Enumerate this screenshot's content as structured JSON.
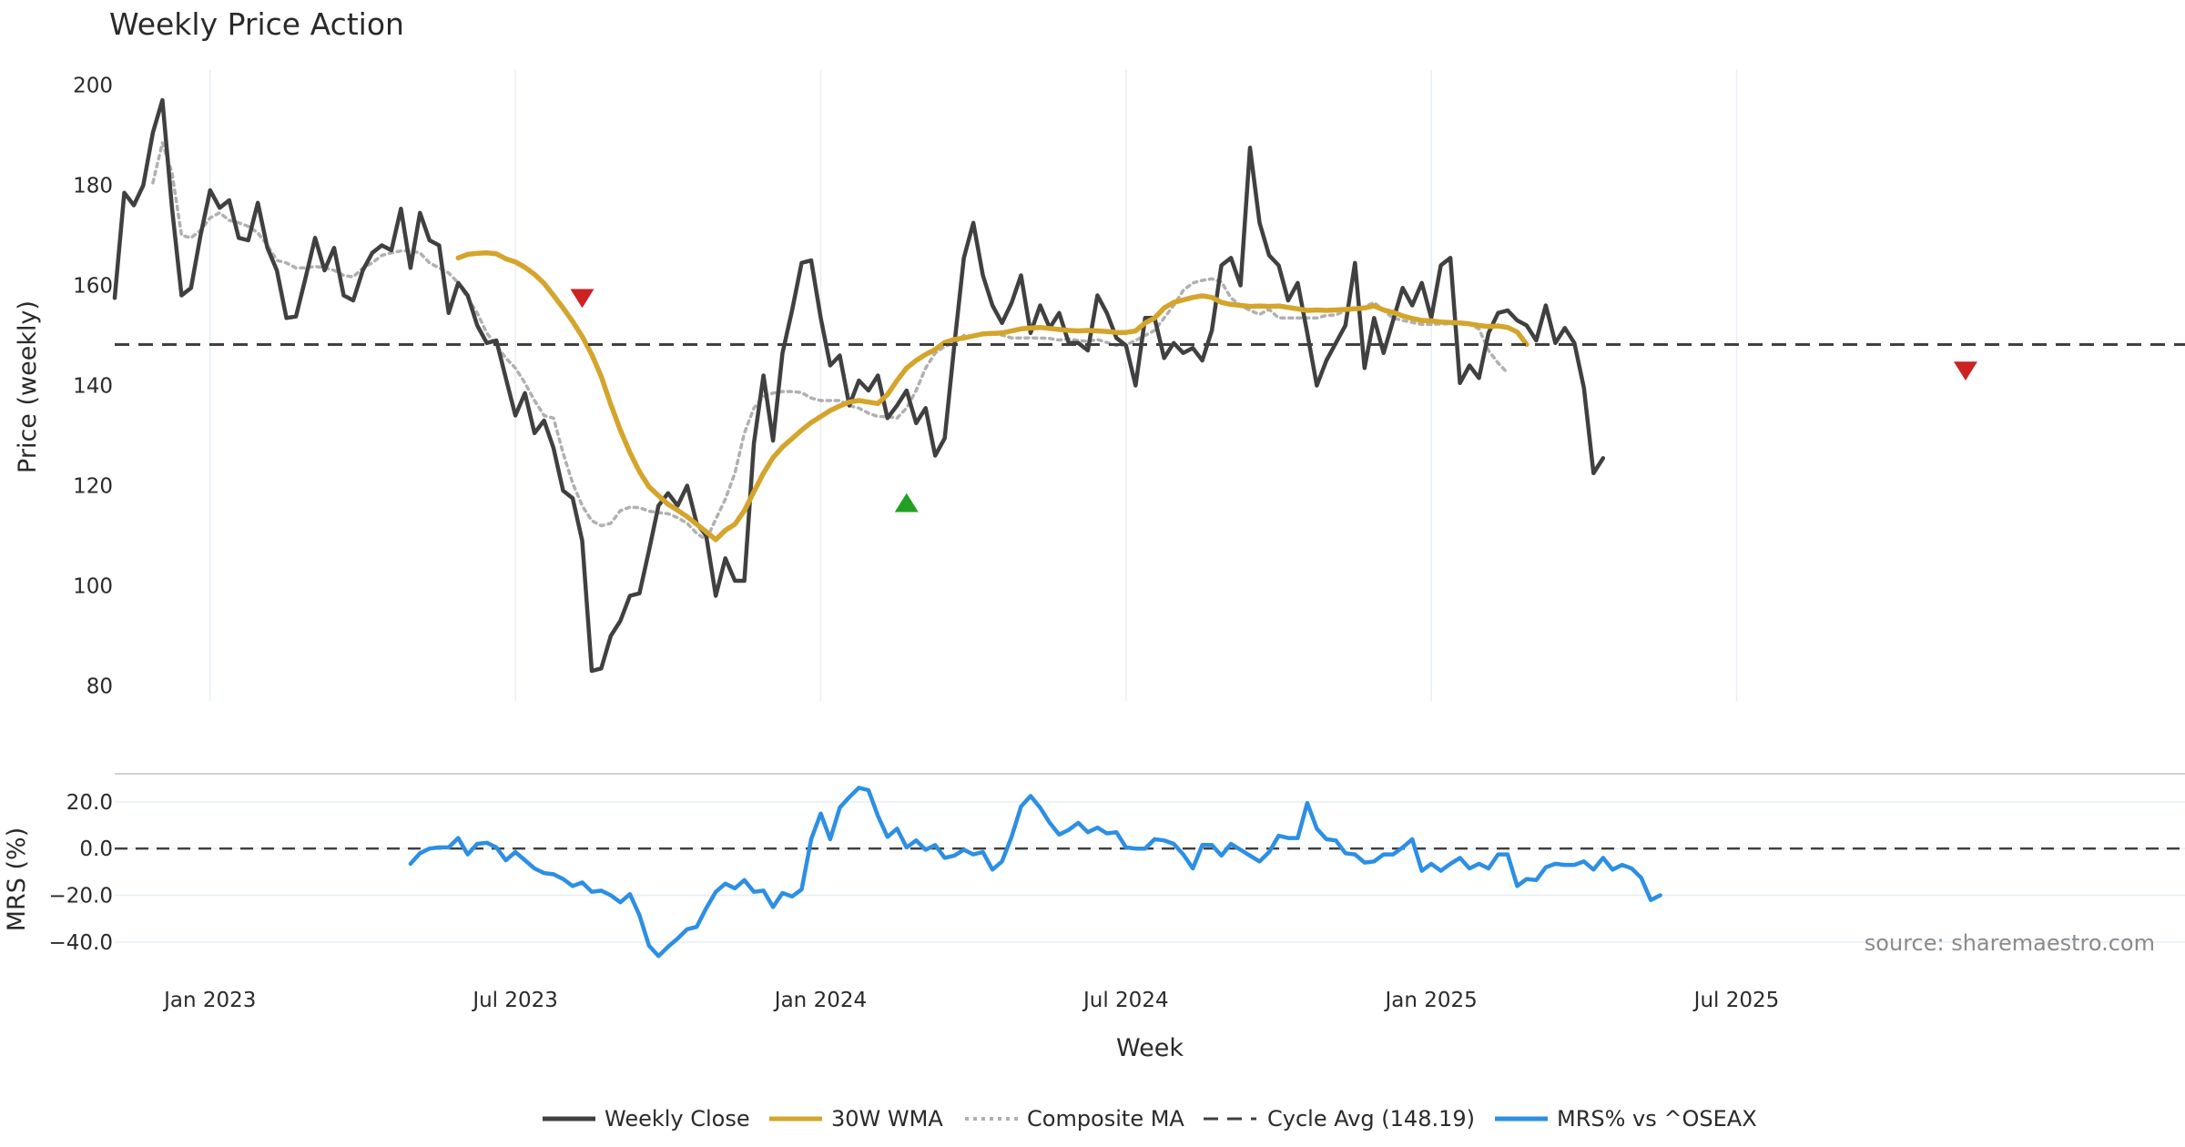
{
  "chart_data": [
    {
      "id": "price_panel",
      "type": "line",
      "title": "Weekly Price Action",
      "ylabel": "Price (weekly)",
      "xlabel": "Week",
      "ylim": [
        77,
        203
      ],
      "xlim": [
        0,
        217
      ],
      "y_ticks": [
        "200",
        "180",
        "160",
        "140",
        "120",
        "100",
        "80"
      ],
      "y_tick_values": [
        200,
        180,
        160,
        140,
        120,
        100,
        80
      ],
      "x_tick_positions": [
        10,
        42,
        74,
        106,
        138,
        170
      ],
      "x_tick_labels": [
        "Jan 2023",
        "Jul 2023",
        "Jan 2024",
        "Jul 2024",
        "Jan 2025",
        "Jul 2025"
      ],
      "cycle_avg": 148.19,
      "series": [
        {
          "name": "Weekly Close",
          "color": "#404040",
          "x_start": 0,
          "values": [
            157.5,
            178.5,
            176,
            180,
            190.5,
            197,
            175.5,
            158,
            159.5,
            170,
            179,
            175.5,
            177,
            169.5,
            169,
            176.5,
            167.5,
            163,
            153.5,
            153.8,
            161.5,
            169.5,
            163,
            167.5,
            158,
            157,
            163,
            166.5,
            168,
            167,
            175.3,
            163.5,
            174.5,
            169,
            168,
            154.5,
            160.5,
            158,
            152,
            148.5,
            149,
            141.5,
            134,
            138.5,
            130.5,
            133,
            127.5,
            119,
            117.5,
            109,
            83,
            83.5,
            90,
            93,
            98,
            98.5,
            107,
            116,
            118.5,
            116,
            120,
            112.5,
            110,
            98,
            105.5,
            101,
            101,
            128.5,
            142,
            129,
            146.5,
            155,
            164.5,
            165,
            153.5,
            144,
            146,
            136,
            141,
            139,
            142,
            133.5,
            136,
            139,
            132.5,
            135.5,
            126,
            129.5,
            148,
            165.5,
            172.5,
            162,
            156,
            152.5,
            156.5,
            162,
            150.5,
            156,
            151.5,
            154.5,
            148.5,
            148.5,
            147,
            158,
            154.5,
            149.5,
            148,
            140,
            153.5,
            153.5,
            145.5,
            148.5,
            146.5,
            147.5,
            145,
            151,
            164,
            165.5,
            160,
            187.5,
            172.5,
            166,
            164,
            157,
            160.5,
            150.5,
            140,
            145,
            148.5,
            152,
            164.5,
            143.5,
            153.5,
            146.5,
            153,
            159.5,
            156,
            160.5,
            153.5,
            164,
            165.5,
            140.5,
            144,
            141.5,
            150.5,
            154.5,
            155,
            153,
            152,
            149,
            156,
            148.5,
            151.5,
            148.5,
            139.5,
            122.5,
            125.5
          ]
        },
        {
          "name": "30W WMA",
          "color": "#d4a52c",
          "x_start": 36,
          "values": [
            165.5,
            166.2,
            166.4,
            166.5,
            166.3,
            165.3,
            164.7,
            163.6,
            162.2,
            160.4,
            158.0,
            155.5,
            152.8,
            149.8,
            146.2,
            141.8,
            136.2,
            131.1,
            126.6,
            122.8,
            119.8,
            118.0,
            116.3,
            115.1,
            113.8,
            112.3,
            110.8,
            109.2,
            111.1,
            112.3,
            115.0,
            118.8,
            122.5,
            125.6,
            127.7,
            129.4,
            131.1,
            132.6,
            133.8,
            135.0,
            135.9,
            136.7,
            137.0,
            136.7,
            136.4,
            138.2,
            141.0,
            143.5,
            145.0,
            146.2,
            147.2,
            148.6,
            149.2,
            149.5,
            149.9,
            150.3,
            150.4,
            150.5,
            150.9,
            151.3,
            151.5,
            151.6,
            151.4,
            151.2,
            151.0,
            150.9,
            151.0,
            150.9,
            150.8,
            150.6,
            150.6,
            150.9,
            152.5,
            153.5,
            155.5,
            156.6,
            157.1,
            157.6,
            157.9,
            157.6,
            156.6,
            156.2,
            156.0,
            155.8,
            155.9,
            155.8,
            155.9,
            155.6,
            155.3,
            155.0,
            155.1,
            155.0,
            155.1,
            155.2,
            155.3,
            155.5,
            155.9,
            155.1,
            154.6,
            153.9,
            153.4,
            153.0,
            152.9,
            152.7,
            152.6,
            152.5,
            152.3,
            152.0,
            151.8,
            151.9,
            151.6,
            150.7,
            148.2
          ]
        },
        {
          "name": "Composite MA",
          "color": "#b0b0b0",
          "x_start": 4,
          "values": [
            180.5,
            188.5,
            182.5,
            170,
            169.5,
            171,
            173.5,
            174.5,
            173,
            172.5,
            171.8,
            170.5,
            168,
            165,
            164.5,
            163.5,
            163.5,
            163.8,
            163.5,
            163,
            162,
            161.7,
            163.5,
            164.5,
            166,
            166.5,
            166.9,
            166.9,
            166.5,
            164.5,
            163.5,
            162.5,
            160.5,
            157.5,
            154.5,
            150.5,
            148,
            145.5,
            143.5,
            140.5,
            137,
            134,
            133.5,
            126.5,
            120.5,
            116,
            113,
            112,
            112.5,
            115,
            115.7,
            115.6,
            114.9,
            114.6,
            114.4,
            113.6,
            112.5,
            110.5,
            109.2,
            113.3,
            117.3,
            122.5,
            130.5,
            135.5,
            137.8,
            138.5,
            138.8,
            138.8,
            138.6,
            137.5,
            137,
            137,
            137,
            136,
            135.5,
            134.5,
            133.8,
            133.8,
            133.5,
            135.5,
            139,
            143.5,
            146.5,
            147.8,
            148.5,
            150,
            149.8,
            150.4,
            150.3,
            150.1,
            149.5,
            149.5,
            149.5,
            149.5,
            149.4,
            149.1,
            149.3,
            149,
            148.8,
            149.2,
            148.6,
            148,
            148.1,
            149,
            150,
            151,
            153.5,
            156,
            159,
            160.5,
            161,
            161.3,
            160.7,
            157.5,
            156,
            155,
            154.2,
            155.2,
            153.5,
            153.5,
            153.5,
            153.5,
            153.5,
            154,
            154.1,
            155,
            155.2,
            155.7,
            156.6,
            155,
            153.5,
            153,
            152.6,
            152.2,
            152.2,
            152.3,
            152.3,
            152.3,
            152.2,
            151.3,
            147,
            144.5,
            142.5
          ]
        }
      ],
      "markers": [
        {
          "type": "sell",
          "x": 49,
          "y": 157.5,
          "color": "#cc2222"
        },
        {
          "type": "buy",
          "x": 83,
          "y": 116.5,
          "color": "#22a022"
        },
        {
          "type": "sell",
          "x": 194,
          "y": 143,
          "color": "#cc2222"
        }
      ]
    },
    {
      "id": "mrs_panel",
      "type": "line",
      "ylabel": "MRS (%)",
      "ylim": [
        -49,
        32
      ],
      "y_ticks": [
        "20.0",
        "0.0",
        "−20.0",
        "−40.0"
      ],
      "y_tick_values": [
        20,
        0,
        -20,
        -40
      ],
      "source": "source: sharemaestro.com",
      "series": [
        {
          "name": "MRS% vs ^OSEAX",
          "color": "#2d8fe3",
          "x_start": 31,
          "values": [
            -6.5,
            -2,
            0,
            0.5,
            0.5,
            4.5,
            -2.5,
            2,
            2.5,
            0.5,
            -5,
            -1.5,
            -5,
            -8.5,
            -10.5,
            -11,
            -13,
            -16,
            -14.5,
            -18.5,
            -18,
            -20,
            -23,
            -19.5,
            -28.5,
            -41.5,
            -46,
            -42,
            -38.5,
            -34.5,
            -33.5,
            -25.5,
            -18.5,
            -15,
            -17,
            -13.5,
            -18.5,
            -18,
            -25,
            -19,
            -20.5,
            -17.5,
            4,
            15,
            4,
            17.5,
            22,
            26,
            25,
            14,
            5,
            8.5,
            0.5,
            3.5,
            -0.5,
            1.5,
            -4,
            -3,
            -0.5,
            -2.5,
            -1.5,
            -9,
            -5.5,
            5,
            18,
            22.5,
            17.5,
            11,
            6,
            8,
            11,
            7,
            9,
            6.5,
            7,
            0.5,
            0,
            0,
            4,
            3.5,
            2,
            -2.5,
            -8.5,
            1.5,
            1.5,
            -3,
            2,
            -0.5,
            -3,
            -5.5,
            -1.5,
            5.5,
            4.5,
            4.5,
            19.5,
            8.5,
            4,
            3.5,
            -2,
            -2.5,
            -6,
            -5.5,
            -2.5,
            -2.5,
            0.5,
            4,
            -9.5,
            -6.5,
            -9.5,
            -6.5,
            -4,
            -8.5,
            -6.5,
            -8.5,
            -2.5,
            -2.5,
            -16,
            -13,
            -13.5,
            -8,
            -6.5,
            -7,
            -7,
            -5.5,
            -9,
            -4,
            -9,
            -7,
            -8.5,
            -12.5,
            -22,
            -20
          ]
        }
      ]
    }
  ],
  "legend": [
    {
      "label": "Weekly Close",
      "color": "#404040",
      "style": "solid"
    },
    {
      "label": "30W WMA",
      "color": "#d4a52c",
      "style": "solid"
    },
    {
      "label": "Composite MA",
      "color": "#b0b0b0",
      "style": "dotted"
    },
    {
      "label": "Cycle Avg (148.19)",
      "color": "#404040",
      "style": "dashed"
    },
    {
      "label": "MRS% vs ^OSEAX",
      "color": "#2d8fe3",
      "style": "solid"
    }
  ]
}
